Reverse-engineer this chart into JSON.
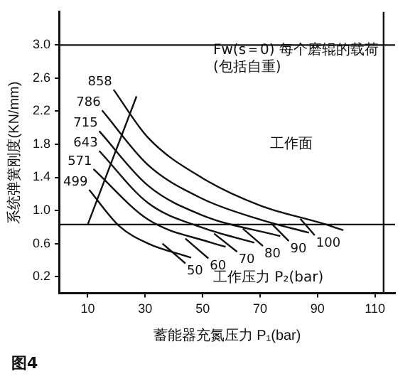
{
  "chart_data": {
    "type": "line",
    "xlabel": "蓄能器充氮压力 P₁(bar)",
    "ylabel": "系统弹簧刚度(KN/mm)",
    "xlim": [
      0,
      117
    ],
    "xticks": [
      10,
      30,
      50,
      70,
      90,
      110
    ],
    "ylim": [
      0,
      3.4
    ],
    "yticks": [
      0.2,
      0.6,
      {
        "value": 1,
        "label": "1.0"
      },
      1.4,
      1.8,
      2.2,
      2.6,
      {
        "value": 3,
        "label": "3.0"
      }
    ],
    "grid": false,
    "legend": false,
    "marker": "none",
    "line_style": "solid",
    "series": [
      {
        "name": "858",
        "color": "#111111",
        "x": [
          19,
          31,
          50,
          70,
          92,
          99
        ],
        "values": [
          2.46,
          1.88,
          1.39,
          1.06,
          0.84,
          0.76
        ]
      },
      {
        "name": "786",
        "color": "#111111",
        "x": [
          15,
          31,
          50,
          70,
          87
        ],
        "values": [
          2.21,
          1.55,
          1.14,
          0.89,
          0.73
        ]
      },
      {
        "name": "715",
        "color": "#111111",
        "x": [
          14,
          31,
          50,
          77
        ],
        "values": [
          1.96,
          1.3,
          0.94,
          0.69
        ]
      },
      {
        "name": "643",
        "color": "#111111",
        "x": [
          14,
          31,
          50,
          68
        ],
        "values": [
          1.72,
          1.09,
          0.79,
          0.61
        ]
      },
      {
        "name": "571",
        "color": "#111111",
        "x": [
          12,
          31,
          53,
          58
        ],
        "values": [
          1.5,
          0.89,
          0.61,
          0.56
        ]
      },
      {
        "name": "499",
        "color": "#111111",
        "x": [
          10.5,
          21,
          31,
          46
        ],
        "values": [
          1.25,
          0.81,
          0.6,
          0.43
        ]
      },
      {
        "name": "50",
        "color": "#111111",
        "x": [
          44,
          36
        ],
        "values": [
          0.36,
          0.6
        ]
      },
      {
        "name": "60",
        "color": "#111111",
        "x": [
          52,
          44
        ],
        "values": [
          0.42,
          0.66
        ]
      },
      {
        "name": "70",
        "color": "#111111",
        "x": [
          62,
          54
        ],
        "values": [
          0.5,
          0.72
        ]
      },
      {
        "name": "80",
        "color": "#111111",
        "x": [
          71,
          64
        ],
        "values": [
          0.57,
          0.78
        ]
      },
      {
        "name": "90",
        "color": "#111111",
        "x": [
          80,
          74
        ],
        "values": [
          0.63,
          0.84
        ]
      },
      {
        "name": "100",
        "color": "#111111",
        "x": [
          89,
          84
        ],
        "values": [
          0.7,
          0.9
        ]
      },
      {
        "color": "#111111",
        "x": [
          10,
          27
        ],
        "values": [
          0.83,
          2.38
        ]
      }
    ],
    "ref_lines": [
      {
        "axis": "y",
        "value": 0.83,
        "color": "#111111"
      },
      {
        "axis": "y",
        "value": 3,
        "color": "#111111"
      },
      {
        "axis": "x",
        "value": 113,
        "color": "#111111"
      }
    ],
    "annotations": [
      "Fw(s＝0) 每个磨辊的载荷(包括自重)",
      "工作面",
      "工作压力 P₂(bar)",
      "图4"
    ]
  }
}
